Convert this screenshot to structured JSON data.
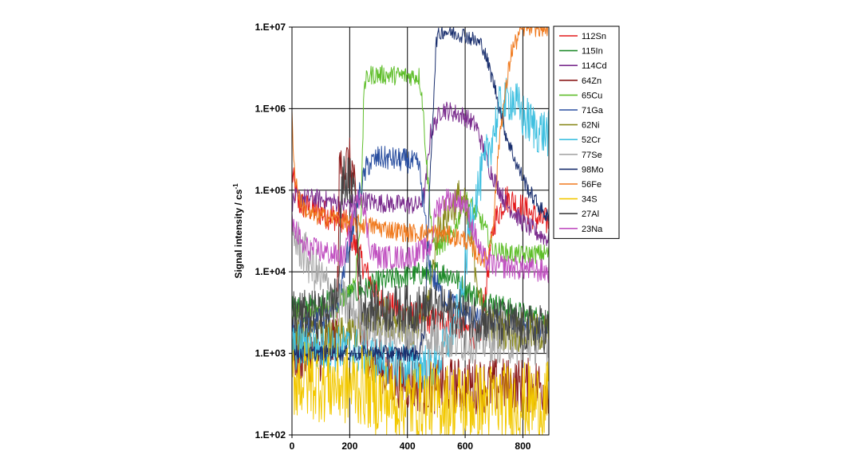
{
  "chart_data": {
    "type": "line",
    "title": "",
    "xlabel": "",
    "ylabel": "Signal intensity / cs",
    "ylabel_superscript": "-1",
    "x_scale": "linear",
    "y_scale": "log",
    "xlim": [
      0,
      890
    ],
    "ylim": [
      100,
      10000000
    ],
    "x_ticks": [
      0,
      200,
      400,
      600,
      800
    ],
    "x_tick_labels": [
      "0",
      "200",
      "400",
      "600",
      "800"
    ],
    "y_ticks": [
      100,
      1000,
      10000,
      100000,
      1000000,
      10000000
    ],
    "y_tick_labels": [
      "1.E+02",
      "1.E+03",
      "1.E+04",
      "1.E+05",
      "1.E+06",
      "1.E+07"
    ],
    "grid": true,
    "legend_position": "right",
    "series": [
      {
        "name": "112Sn",
        "color": "#e41a1c",
        "noise": 0.18,
        "x": [
          0,
          20,
          60,
          120,
          180,
          220,
          300,
          400,
          500,
          560,
          600,
          650,
          700,
          740,
          760,
          800,
          850,
          890
        ],
        "y": [
          160000,
          70000,
          60000,
          50000,
          45000,
          20000,
          4500,
          3000,
          2500,
          2500,
          2000,
          1500,
          40000,
          80000,
          75000,
          60000,
          45000,
          40000
        ]
      },
      {
        "name": "115In",
        "color": "#1f8a2a",
        "noise": 0.15,
        "x": [
          0,
          20,
          100,
          180,
          250,
          300,
          400,
          500,
          560,
          600,
          700,
          800,
          890
        ],
        "y": [
          4000,
          3500,
          4000,
          5000,
          6000,
          7500,
          9000,
          10000,
          9000,
          6000,
          4000,
          3000,
          2500
        ]
      },
      {
        "name": "114Cd",
        "color": "#7b2d8e",
        "noise": 0.12,
        "x": [
          0,
          10,
          80,
          160,
          180,
          240,
          300,
          440,
          460,
          480,
          520,
          600,
          640,
          680,
          740,
          800,
          850,
          890
        ],
        "y": [
          70000,
          80000,
          80000,
          70000,
          65000,
          75000,
          70000,
          65000,
          90000,
          500000,
          1000000,
          800000,
          600000,
          200000,
          70000,
          40000,
          30000,
          25000
        ]
      },
      {
        "name": "64Zn",
        "color": "#8b1a1a",
        "noise": 0.35,
        "x": [
          0,
          100,
          155,
          165,
          200,
          215,
          235,
          280,
          350,
          450,
          550,
          650,
          750,
          890
        ],
        "y": [
          1000,
          1000,
          1500,
          200000,
          200000,
          150000,
          2000,
          800,
          500,
          400,
          400,
          400,
          400,
          400
        ]
      },
      {
        "name": "65Cu",
        "color": "#5fbe2a",
        "noise": 0.12,
        "x": [
          0,
          150,
          220,
          240,
          250,
          270,
          300,
          440,
          450,
          470,
          490,
          510,
          560,
          600,
          660,
          700,
          800,
          890
        ],
        "y": [
          3000,
          3500,
          8000,
          60000,
          2000000,
          2600000,
          2600000,
          2500000,
          1500000,
          150000,
          20000,
          20000,
          30000,
          80000,
          40000,
          18000,
          16000,
          17000
        ]
      },
      {
        "name": "71Ga",
        "color": "#2a4fa0",
        "noise": 0.15,
        "x": [
          0,
          150,
          230,
          260,
          300,
          400,
          440,
          460,
          480,
          520,
          560,
          600,
          650,
          700,
          800,
          890
        ],
        "y": [
          2000,
          3000,
          80000,
          200000,
          250000,
          230000,
          200000,
          50000,
          10000,
          5000,
          4000,
          3000,
          2500,
          2500,
          2000,
          2000
        ]
      },
      {
        "name": "62Ni",
        "color": "#8a8a1e",
        "noise": 0.25,
        "x": [
          0,
          150,
          250,
          300,
          380,
          430,
          480,
          500,
          550,
          580,
          600,
          640,
          660,
          700,
          800,
          890
        ],
        "y": [
          1500,
          1500,
          2000,
          3000,
          2500,
          1800,
          5000,
          30000,
          60000,
          80000,
          60000,
          10000,
          3000,
          2000,
          1800,
          1800
        ]
      },
      {
        "name": "52Cr",
        "color": "#40c0e0",
        "noise": 0.3,
        "x": [
          0,
          200,
          260,
          300,
          400,
          500,
          560,
          590,
          620,
          680,
          720,
          760,
          800,
          850,
          890
        ],
        "y": [
          1200,
          1100,
          1000,
          800,
          700,
          700,
          2000,
          5000,
          50000,
          300000,
          1000000,
          1400000,
          800000,
          550000,
          500000
        ]
      },
      {
        "name": "77Se",
        "color": "#a8a8a8",
        "noise": 0.3,
        "x": [
          0,
          50,
          100,
          150,
          200,
          250,
          300,
          400,
          500,
          600,
          700,
          800,
          890
        ],
        "y": [
          30000,
          15000,
          8000,
          5000,
          3500,
          2500,
          2000,
          1800,
          1600,
          1500,
          1500,
          1400,
          1400
        ]
      },
      {
        "name": "98Mo",
        "color": "#1a2f6e",
        "noise": 0.1,
        "x": [
          0,
          150,
          300,
          440,
          460,
          480,
          500,
          520,
          600,
          660,
          700,
          740,
          780,
          820,
          860,
          890
        ],
        "y": [
          1000,
          1000,
          1000,
          1000,
          2000,
          200000,
          7000000,
          9000000,
          8000000,
          6000000,
          2000000,
          500000,
          200000,
          100000,
          60000,
          45000
        ]
      },
      {
        "name": "56Fe",
        "color": "#f07a1e",
        "noise": 0.12,
        "x": [
          0,
          10,
          30,
          60,
          150,
          200,
          300,
          400,
          500,
          600,
          650,
          680,
          700,
          720,
          760,
          800,
          820,
          890
        ],
        "y": [
          800000,
          150000,
          70000,
          50000,
          45000,
          40000,
          35000,
          30000,
          30000,
          25000,
          15000,
          15000,
          50000,
          500000,
          5000000,
          10000000,
          10000000,
          10000000
        ]
      },
      {
        "name": "34S",
        "color": "#f2c800",
        "noise": 0.5,
        "x": [
          0,
          100,
          200,
          250,
          300,
          400,
          500,
          600,
          700,
          800,
          890
        ],
        "y": [
          500,
          450,
          400,
          400,
          300,
          250,
          250,
          250,
          250,
          250,
          250
        ]
      },
      {
        "name": "27Al",
        "color": "#444444",
        "noise": 0.3,
        "x": [
          0,
          100,
          160,
          175,
          200,
          220,
          240,
          300,
          400,
          500,
          600,
          700,
          800,
          890
        ],
        "y": [
          3000,
          3000,
          5000,
          150000,
          130000,
          100000,
          4000,
          3500,
          3500,
          3500,
          3000,
          2500,
          2000,
          2000
        ]
      },
      {
        "name": "23Na",
        "color": "#c050c0",
        "noise": 0.15,
        "x": [
          0,
          40,
          100,
          180,
          200,
          210,
          240,
          270,
          300,
          400,
          480,
          500,
          540,
          600,
          620,
          660,
          700,
          800,
          890
        ],
        "y": [
          40000,
          20000,
          18000,
          15000,
          30000,
          50000,
          100000,
          20000,
          15000,
          15000,
          20000,
          60000,
          80000,
          70000,
          40000,
          15000,
          12000,
          11000,
          10000
        ]
      }
    ]
  }
}
